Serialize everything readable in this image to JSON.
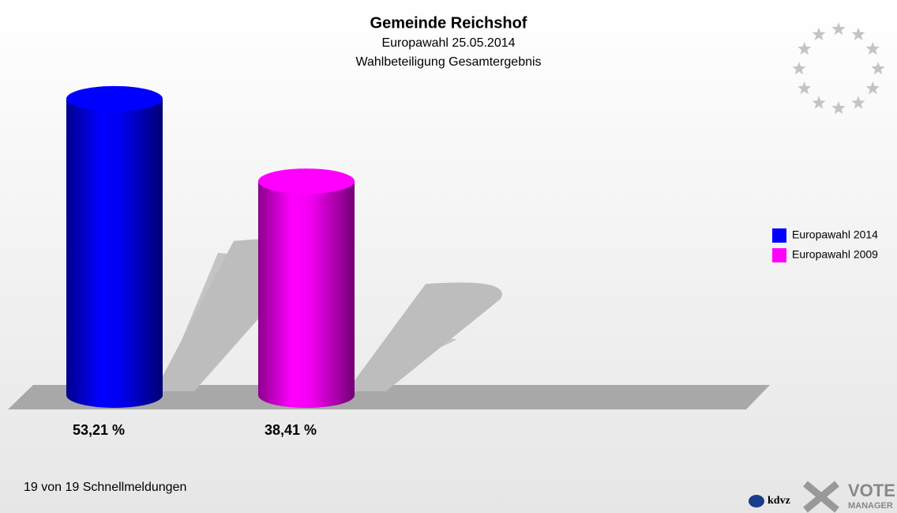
{
  "chart_data": {
    "type": "bar",
    "title": "Gemeinde Reichshof",
    "subtitle": "Europawahl 25.05.2014",
    "subtitle2": "Wahlbeteiligung Gesamtergebnis",
    "series": [
      {
        "name": "Europawahl 2014",
        "color": "#0000ff",
        "values": [
          53.21
        ],
        "value_labels": [
          "53,21 %"
        ]
      },
      {
        "name": "Europawahl 2009",
        "color": "#ff00ff",
        "values": [
          38.41
        ],
        "value_labels": [
          "38,41 %"
        ]
      }
    ],
    "legend": "right",
    "footer": "19 von 19 Schnellmeldungen",
    "logo_texts": [
      "kdvz",
      "VOTE",
      "MANAGER"
    ]
  }
}
